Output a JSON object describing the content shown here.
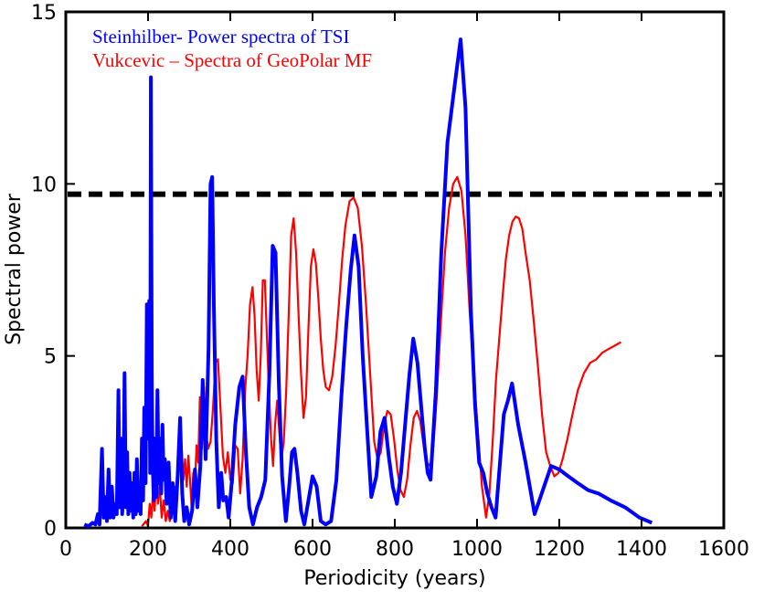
{
  "chart_data": {
    "type": "line",
    "xlabel": "Periodicity (years)",
    "ylabel": "Spectral power",
    "xlim": [
      0,
      1600
    ],
    "ylim": [
      0,
      15
    ],
    "xticks": [
      "0",
      "200",
      "400",
      "600",
      "800",
      "1000",
      "1200",
      "1400",
      "1600"
    ],
    "yticks": [
      "0",
      "5",
      "10",
      "15"
    ],
    "grid": false,
    "legend_position": "top-left",
    "threshold": {
      "y": 9.7,
      "color": "#000000",
      "style": "dashed"
    },
    "series": [
      {
        "name": "Steinhilber- Power spectra of TSI",
        "color": "#0000ff",
        "points": [
          [
            45,
            0.1
          ],
          [
            55,
            0.05
          ],
          [
            65,
            0.15
          ],
          [
            72,
            0.1
          ],
          [
            78,
            0.4
          ],
          [
            82,
            0.1
          ],
          [
            88,
            2.3
          ],
          [
            92,
            0.3
          ],
          [
            96,
            0.9
          ],
          [
            100,
            0.2
          ],
          [
            104,
            1.7
          ],
          [
            108,
            0.3
          ],
          [
            112,
            1.2
          ],
          [
            116,
            0.3
          ],
          [
            120,
            0.7
          ],
          [
            124,
            0.4
          ],
          [
            128,
            4.0
          ],
          [
            131,
            0.6
          ],
          [
            134,
            2.6
          ],
          [
            137,
            0.4
          ],
          [
            140,
            1.1
          ],
          [
            143,
            4.5
          ],
          [
            146,
            0.6
          ],
          [
            149,
            2.2
          ],
          [
            152,
            0.4
          ],
          [
            155,
            1.6
          ],
          [
            158,
            0.5
          ],
          [
            161,
            1.3
          ],
          [
            164,
            0.3
          ],
          [
            167,
            1.6
          ],
          [
            170,
            0.4
          ],
          [
            173,
            2.0
          ],
          [
            176,
            0.5
          ],
          [
            179,
            1.2
          ],
          [
            182,
            0.4
          ],
          [
            185,
            2.6
          ],
          [
            188,
            0.8
          ],
          [
            191,
            3.5
          ],
          [
            194,
            1.3
          ],
          [
            197,
            6.5
          ],
          [
            200,
            2.6
          ],
          [
            203,
            6.6
          ],
          [
            205,
            1.6
          ],
          [
            207,
            13.1
          ],
          [
            209,
            4.5
          ],
          [
            211,
            2.0
          ],
          [
            214,
            0.8
          ],
          [
            217,
            2.6
          ],
          [
            220,
            0.9
          ],
          [
            223,
            4.0
          ],
          [
            226,
            1.3
          ],
          [
            229,
            2.6
          ],
          [
            232,
            1.0
          ],
          [
            235,
            3.0
          ],
          [
            238,
            1.4
          ],
          [
            241,
            2.0
          ],
          [
            245,
            0.7
          ],
          [
            250,
            1.9
          ],
          [
            255,
            0.3
          ],
          [
            260,
            1.3
          ],
          [
            266,
            0.2
          ],
          [
            272,
            1.5
          ],
          [
            278,
            3.2
          ],
          [
            283,
            1.0
          ],
          [
            288,
            0.2
          ],
          [
            294,
            0.6
          ],
          [
            300,
            0.1
          ],
          [
            307,
            0.5
          ],
          [
            314,
            1.7
          ],
          [
            320,
            0.6
          ],
          [
            327,
            1.8
          ],
          [
            333,
            4.3
          ],
          [
            340,
            2.0
          ],
          [
            347,
            5.2
          ],
          [
            352,
            10.0
          ],
          [
            356,
            10.2
          ],
          [
            360,
            6.5
          ],
          [
            366,
            2.5
          ],
          [
            372,
            0.6
          ],
          [
            378,
            1.6
          ],
          [
            383,
            0.8
          ],
          [
            390,
            0.9
          ],
          [
            396,
            0.3
          ],
          [
            404,
            1.4
          ],
          [
            412,
            3.0
          ],
          [
            422,
            4.1
          ],
          [
            430,
            4.4
          ],
          [
            438,
            2.2
          ],
          [
            446,
            0.6
          ],
          [
            455,
            0.1
          ],
          [
            465,
            0.6
          ],
          [
            475,
            0.9
          ],
          [
            485,
            1.4
          ],
          [
            495,
            4.5
          ],
          [
            503,
            8.2
          ],
          [
            510,
            8.0
          ],
          [
            518,
            4.2
          ],
          [
            526,
            1.5
          ],
          [
            535,
            0.2
          ],
          [
            543,
            1.2
          ],
          [
            550,
            2.2
          ],
          [
            556,
            2.3
          ],
          [
            563,
            1.6
          ],
          [
            572,
            0.5
          ],
          [
            580,
            0.1
          ],
          [
            590,
            0.8
          ],
          [
            600,
            1.5
          ],
          [
            610,
            1.2
          ],
          [
            620,
            0.2
          ],
          [
            632,
            0.1
          ],
          [
            645,
            0.2
          ],
          [
            658,
            1.4
          ],
          [
            670,
            3.8
          ],
          [
            682,
            5.9
          ],
          [
            693,
            7.5
          ],
          [
            702,
            8.5
          ],
          [
            712,
            7.6
          ],
          [
            722,
            5.0
          ],
          [
            732,
            3.0
          ],
          [
            743,
            0.9
          ],
          [
            755,
            1.5
          ],
          [
            765,
            2.8
          ],
          [
            775,
            3.2
          ],
          [
            785,
            2.1
          ],
          [
            795,
            1.2
          ],
          [
            805,
            0.7
          ],
          [
            815,
            1.6
          ],
          [
            825,
            3.0
          ],
          [
            835,
            4.4
          ],
          [
            845,
            5.5
          ],
          [
            855,
            4.8
          ],
          [
            865,
            3.4
          ],
          [
            873,
            2.3
          ],
          [
            880,
            1.6
          ],
          [
            887,
            1.4
          ],
          [
            900,
            4.0
          ],
          [
            913,
            8.0
          ],
          [
            928,
            11.2
          ],
          [
            945,
            12.8
          ],
          [
            960,
            14.2
          ],
          [
            972,
            12.2
          ],
          [
            985,
            6.3
          ],
          [
            995,
            3.6
          ],
          [
            1005,
            1.9
          ],
          [
            1015,
            1.6
          ],
          [
            1025,
            1.0
          ],
          [
            1035,
            0.6
          ],
          [
            1045,
            0.3
          ],
          [
            1055,
            1.8
          ],
          [
            1065,
            3.3
          ],
          [
            1075,
            3.7
          ],
          [
            1085,
            4.2
          ],
          [
            1100,
            3.0
          ],
          [
            1118,
            1.9
          ],
          [
            1140,
            0.4
          ],
          [
            1160,
            1.1
          ],
          [
            1180,
            1.8
          ],
          [
            1200,
            1.7
          ],
          [
            1222,
            1.5
          ],
          [
            1245,
            1.3
          ],
          [
            1270,
            1.1
          ],
          [
            1295,
            1.0
          ],
          [
            1325,
            0.8
          ],
          [
            1360,
            0.6
          ],
          [
            1395,
            0.3
          ],
          [
            1425,
            0.15
          ]
        ]
      },
      {
        "name": "Vukcevic – Spectra of GeoPolar MF",
        "color": "#ff0000",
        "points": [
          [
            185,
            0.05
          ],
          [
            195,
            0.2
          ],
          [
            200,
            0.05
          ],
          [
            204,
            0.7
          ],
          [
            208,
            0.3
          ],
          [
            212,
            1.0
          ],
          [
            216,
            0.5
          ],
          [
            220,
            1.5
          ],
          [
            224,
            0.7
          ],
          [
            228,
            1.3
          ],
          [
            233,
            0.3
          ],
          [
            238,
            0.8
          ],
          [
            243,
            0.2
          ],
          [
            248,
            0.5
          ],
          [
            253,
            0.2
          ],
          [
            258,
            0.6
          ],
          [
            262,
            0.4
          ],
          [
            266,
            1.2
          ],
          [
            270,
            0.9
          ],
          [
            274,
            2.2
          ],
          [
            278,
            1.8
          ],
          [
            282,
            2.3
          ],
          [
            286,
            1.4
          ],
          [
            290,
            2.0
          ],
          [
            294,
            1.2
          ],
          [
            298,
            2.1
          ],
          [
            302,
            1.4
          ],
          [
            306,
            0.6
          ],
          [
            310,
            1.6
          ],
          [
            314,
            1.3
          ],
          [
            318,
            2.4
          ],
          [
            322,
            1.9
          ],
          [
            326,
            3.8
          ],
          [
            331,
            2.3
          ],
          [
            336,
            4.1
          ],
          [
            341,
            2.8
          ],
          [
            346,
            2.3
          ],
          [
            352,
            2.5
          ],
          [
            358,
            3.5
          ],
          [
            364,
            4.8
          ],
          [
            370,
            4.9
          ],
          [
            376,
            3.5
          ],
          [
            382,
            2.1
          ],
          [
            388,
            1.6
          ],
          [
            394,
            2.2
          ],
          [
            400,
            1.4
          ],
          [
            406,
            1.3
          ],
          [
            412,
            2.4
          ],
          [
            418,
            2.3
          ],
          [
            424,
            1.0
          ],
          [
            430,
            2.0
          ],
          [
            436,
            4.0
          ],
          [
            442,
            5.0
          ],
          [
            448,
            6.5
          ],
          [
            454,
            7.0
          ],
          [
            459,
            6.2
          ],
          [
            464,
            4.6
          ],
          [
            469,
            3.7
          ],
          [
            474,
            5.0
          ],
          [
            479,
            7.2
          ],
          [
            484,
            7.2
          ],
          [
            489,
            5.6
          ],
          [
            494,
            4.0
          ],
          [
            499,
            2.6
          ],
          [
            504,
            1.8
          ],
          [
            509,
            3.0
          ],
          [
            514,
            3.7
          ],
          [
            519,
            2.8
          ],
          [
            524,
            2.0
          ],
          [
            530,
            2.5
          ],
          [
            536,
            4.0
          ],
          [
            542,
            6.2
          ],
          [
            548,
            8.5
          ],
          [
            554,
            9.0
          ],
          [
            560,
            8.0
          ],
          [
            566,
            6.2
          ],
          [
            572,
            4.5
          ],
          [
            578,
            3.2
          ],
          [
            584,
            3.8
          ],
          [
            590,
            5.8
          ],
          [
            596,
            7.6
          ],
          [
            602,
            8.1
          ],
          [
            608,
            7.7
          ],
          [
            614,
            6.7
          ],
          [
            620,
            5.5
          ],
          [
            626,
            4.6
          ],
          [
            632,
            4.1
          ],
          [
            640,
            4.0
          ],
          [
            648,
            4.4
          ],
          [
            656,
            5.3
          ],
          [
            664,
            6.5
          ],
          [
            672,
            7.8
          ],
          [
            680,
            8.8
          ],
          [
            690,
            9.5
          ],
          [
            700,
            9.6
          ],
          [
            710,
            9.3
          ],
          [
            720,
            8.2
          ],
          [
            730,
            6.5
          ],
          [
            740,
            4.5
          ],
          [
            750,
            2.5
          ],
          [
            758,
            2.0
          ],
          [
            766,
            2.2
          ],
          [
            774,
            3.0
          ],
          [
            782,
            3.4
          ],
          [
            790,
            3.3
          ],
          [
            798,
            2.6
          ],
          [
            806,
            1.7
          ],
          [
            814,
            1.1
          ],
          [
            822,
            0.9
          ],
          [
            830,
            1.4
          ],
          [
            838,
            2.4
          ],
          [
            846,
            3.2
          ],
          [
            854,
            3.4
          ],
          [
            862,
            3.1
          ],
          [
            870,
            2.4
          ],
          [
            878,
            1.9
          ],
          [
            886,
            1.8
          ],
          [
            894,
            2.4
          ],
          [
            902,
            3.8
          ],
          [
            912,
            6.0
          ],
          [
            922,
            8.0
          ],
          [
            932,
            9.3
          ],
          [
            942,
            10.0
          ],
          [
            952,
            10.2
          ],
          [
            962,
            9.8
          ],
          [
            972,
            8.5
          ],
          [
            982,
            6.3
          ],
          [
            992,
            4.5
          ],
          [
            1002,
            2.8
          ],
          [
            1012,
            1.2
          ],
          [
            1022,
            0.3
          ],
          [
            1030,
            1.0
          ],
          [
            1038,
            2.5
          ],
          [
            1046,
            4.3
          ],
          [
            1054,
            5.5
          ],
          [
            1062,
            6.7
          ],
          [
            1070,
            7.8
          ],
          [
            1078,
            8.5
          ],
          [
            1086,
            8.9
          ],
          [
            1094,
            9.05
          ],
          [
            1102,
            9.0
          ],
          [
            1110,
            8.7
          ],
          [
            1118,
            8.0
          ],
          [
            1128,
            7.2
          ],
          [
            1138,
            6.0
          ],
          [
            1148,
            4.7
          ],
          [
            1158,
            3.3
          ],
          [
            1168,
            2.2
          ],
          [
            1178,
            1.8
          ],
          [
            1188,
            1.5
          ],
          [
            1198,
            1.6
          ],
          [
            1208,
            2.0
          ],
          [
            1220,
            2.6
          ],
          [
            1232,
            3.3
          ],
          [
            1245,
            4.0
          ],
          [
            1260,
            4.5
          ],
          [
            1275,
            4.8
          ],
          [
            1290,
            4.9
          ],
          [
            1305,
            5.1
          ],
          [
            1320,
            5.2
          ],
          [
            1335,
            5.3
          ],
          [
            1350,
            5.4
          ]
        ]
      }
    ]
  }
}
